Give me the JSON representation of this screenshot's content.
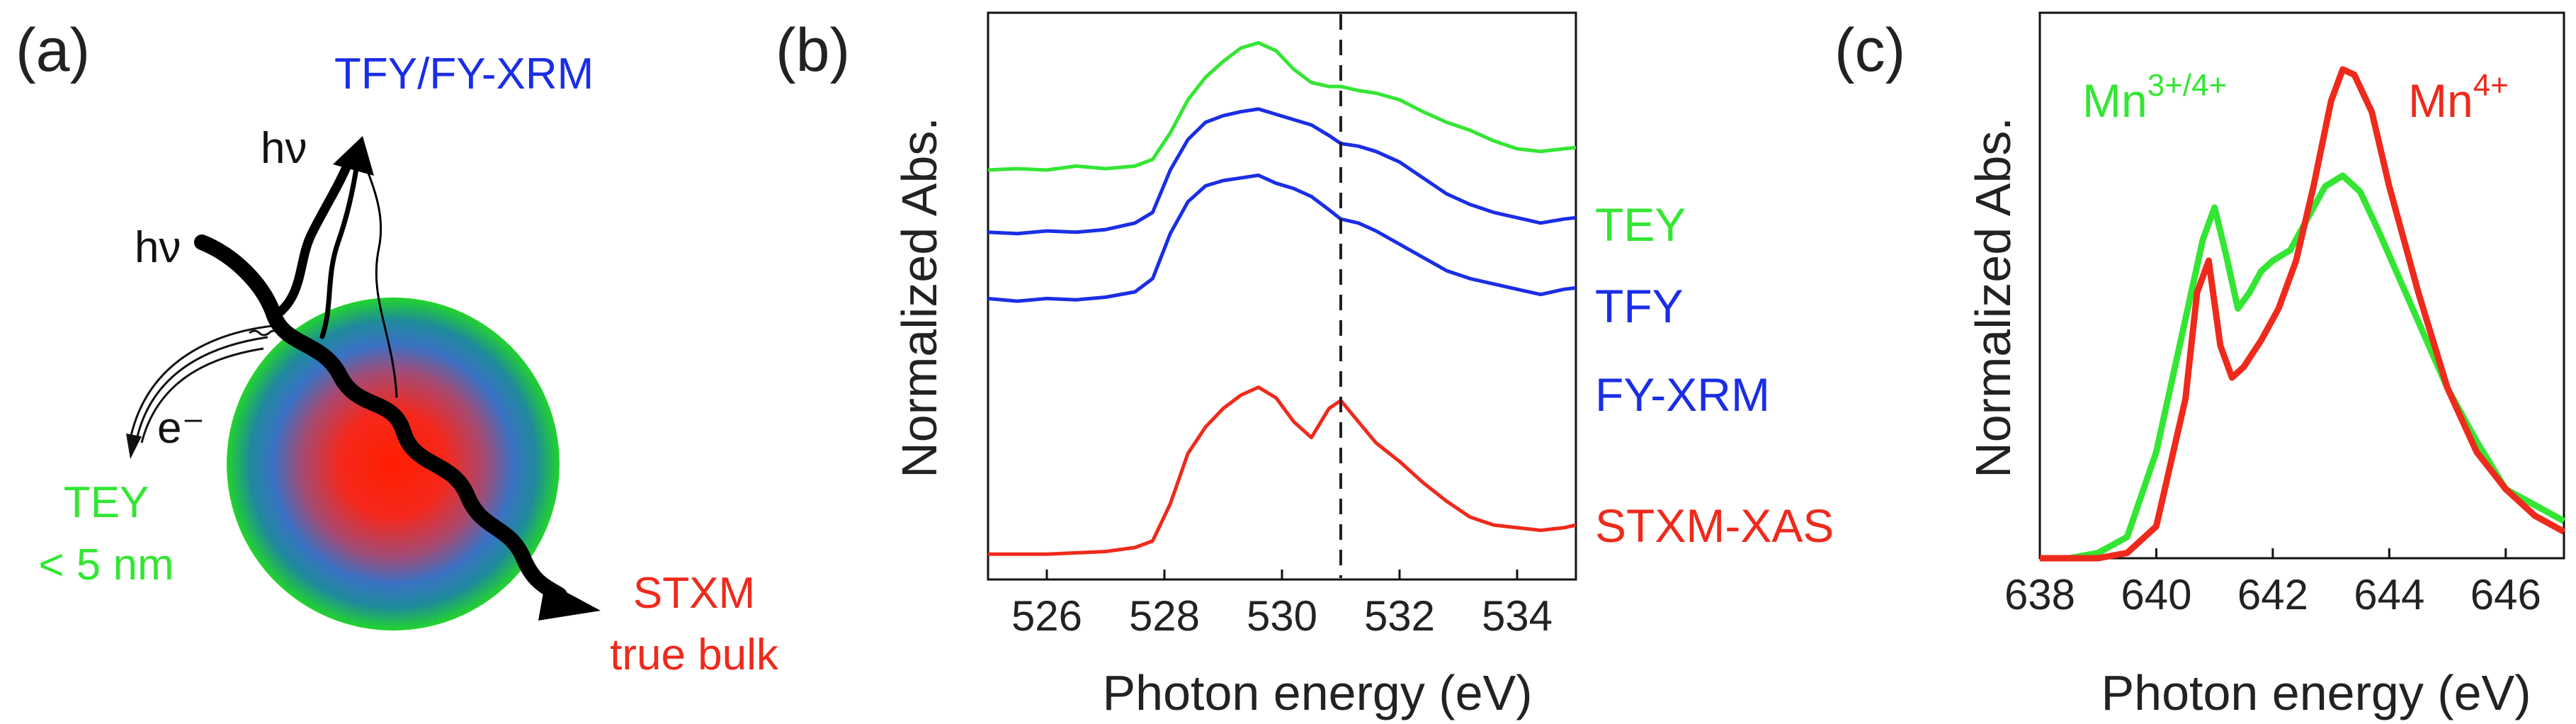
{
  "colors": {
    "green": "#33e633",
    "blue": "#1a2ee6",
    "red": "#ee2a1c",
    "black": "#111111",
    "dash": "#222222"
  },
  "panel_a": {
    "label": "(a)",
    "hv_top": "hν",
    "hv_left": "hν",
    "tfy_fy_xrm": "TFY/FY-XRM",
    "electron": "e⁻",
    "tey": "TEY",
    "tey_depth": "< 5 nm",
    "stxm": "STXM",
    "stxm_sub": "true bulk"
  },
  "chart_data": [
    {
      "panel": "(b)",
      "type": "line",
      "xlabel": "Photon energy (eV)",
      "ylabel": "Normalized Abs.",
      "xlim": [
        525,
        535
      ],
      "ylim": [
        0,
        4.0
      ],
      "xticks": [
        526,
        528,
        530,
        532,
        534
      ],
      "yticks": [],
      "dashed_vline_x": 531.0,
      "series": [
        {
          "name": "TEY",
          "color": "green",
          "x": [
            525.0,
            525.5,
            526.0,
            526.5,
            527.0,
            527.5,
            527.8,
            528.1,
            528.4,
            528.7,
            529.0,
            529.3,
            529.6,
            529.9,
            530.2,
            530.5,
            530.8,
            531.0,
            531.3,
            531.6,
            532.0,
            532.4,
            532.8,
            533.2,
            533.6,
            534.0,
            534.4,
            534.8,
            535.0
          ],
          "y": [
            2.92,
            2.93,
            2.92,
            2.95,
            2.93,
            2.95,
            3.0,
            3.2,
            3.45,
            3.62,
            3.74,
            3.84,
            3.88,
            3.82,
            3.68,
            3.58,
            3.55,
            3.55,
            3.52,
            3.5,
            3.45,
            3.36,
            3.28,
            3.22,
            3.14,
            3.08,
            3.06,
            3.08,
            3.09
          ]
        },
        {
          "name": "TFY",
          "color": "blue",
          "x": [
            525.0,
            525.5,
            526.0,
            526.5,
            527.0,
            527.5,
            527.8,
            528.1,
            528.4,
            528.7,
            529.0,
            529.3,
            529.6,
            529.9,
            530.2,
            530.5,
            530.8,
            531.0,
            531.3,
            531.6,
            532.0,
            532.4,
            532.8,
            533.2,
            533.6,
            534.0,
            534.4,
            534.8,
            535.0
          ],
          "y": [
            2.45,
            2.44,
            2.46,
            2.45,
            2.47,
            2.52,
            2.6,
            2.92,
            3.15,
            3.28,
            3.33,
            3.36,
            3.38,
            3.34,
            3.3,
            3.26,
            3.18,
            3.12,
            3.1,
            3.06,
            2.98,
            2.86,
            2.74,
            2.66,
            2.6,
            2.56,
            2.52,
            2.55,
            2.56
          ]
        },
        {
          "name": "FY-XRM",
          "color": "blue",
          "x": [
            525.0,
            525.5,
            526.0,
            526.5,
            527.0,
            527.5,
            527.8,
            528.1,
            528.4,
            528.7,
            529.0,
            529.3,
            529.6,
            529.9,
            530.2,
            530.5,
            530.8,
            531.0,
            531.3,
            531.6,
            532.0,
            532.4,
            532.8,
            533.2,
            533.6,
            534.0,
            534.4,
            534.8,
            535.0
          ],
          "y": [
            1.95,
            1.93,
            1.95,
            1.94,
            1.96,
            2.0,
            2.1,
            2.44,
            2.68,
            2.8,
            2.84,
            2.86,
            2.88,
            2.82,
            2.78,
            2.72,
            2.62,
            2.55,
            2.52,
            2.46,
            2.36,
            2.26,
            2.16,
            2.1,
            2.06,
            2.02,
            1.98,
            2.02,
            2.03
          ]
        },
        {
          "name": "STXM-XAS",
          "color": "red",
          "x": [
            525.0,
            525.5,
            526.0,
            526.5,
            527.0,
            527.5,
            527.8,
            528.1,
            528.4,
            528.7,
            529.0,
            529.3,
            529.6,
            529.9,
            530.2,
            530.5,
            530.8,
            531.0,
            531.3,
            531.6,
            532.0,
            532.4,
            532.8,
            533.2,
            533.6,
            534.0,
            534.4,
            534.8,
            535.0
          ],
          "y": [
            0.02,
            0.02,
            0.02,
            0.03,
            0.04,
            0.07,
            0.12,
            0.4,
            0.78,
            0.98,
            1.12,
            1.22,
            1.28,
            1.2,
            1.02,
            0.9,
            1.12,
            1.18,
            1.02,
            0.86,
            0.72,
            0.56,
            0.42,
            0.3,
            0.24,
            0.22,
            0.2,
            0.22,
            0.24
          ]
        }
      ],
      "series_labels": [
        "TEY",
        "TFY",
        "FY-XRM",
        "STXM-XAS"
      ]
    },
    {
      "panel": "(c)",
      "type": "line",
      "xlabel": "Photon energy (eV)",
      "ylabel": "Normalized Abs.",
      "xlim": [
        638,
        647
      ],
      "ylim": [
        0,
        1.0
      ],
      "xticks": [
        638,
        640,
        642,
        644,
        646
      ],
      "yticks": [],
      "series": [
        {
          "name": "Mn3+/4+",
          "label_base": "Mn",
          "label_sup": "3+/4+",
          "color": "green",
          "x": [
            638.0,
            638.5,
            639.0,
            639.5,
            640.0,
            640.5,
            640.8,
            641.0,
            641.2,
            641.4,
            641.6,
            641.8,
            642.0,
            642.3,
            642.6,
            642.9,
            643.2,
            643.5,
            643.8,
            644.2,
            644.6,
            645.0,
            645.5,
            646.0,
            646.5,
            647.0
          ],
          "y": [
            0.0,
            0.0,
            0.01,
            0.04,
            0.2,
            0.45,
            0.6,
            0.66,
            0.57,
            0.47,
            0.5,
            0.54,
            0.56,
            0.58,
            0.64,
            0.7,
            0.72,
            0.69,
            0.62,
            0.52,
            0.42,
            0.32,
            0.22,
            0.13,
            0.1,
            0.07
          ]
        },
        {
          "name": "Mn4+",
          "label_base": "Mn",
          "label_sup": "4+",
          "color": "red",
          "x": [
            638.0,
            638.5,
            639.0,
            639.5,
            640.0,
            640.5,
            640.7,
            640.9,
            641.1,
            641.3,
            641.5,
            641.8,
            642.1,
            642.4,
            642.7,
            643.0,
            643.2,
            643.4,
            643.7,
            644.0,
            644.5,
            645.0,
            645.5,
            646.0,
            646.5,
            647.0
          ],
          "y": [
            0.0,
            0.0,
            0.0,
            0.01,
            0.06,
            0.3,
            0.5,
            0.56,
            0.4,
            0.34,
            0.36,
            0.41,
            0.47,
            0.56,
            0.7,
            0.86,
            0.92,
            0.91,
            0.84,
            0.7,
            0.5,
            0.32,
            0.2,
            0.13,
            0.08,
            0.05
          ]
        }
      ]
    }
  ]
}
